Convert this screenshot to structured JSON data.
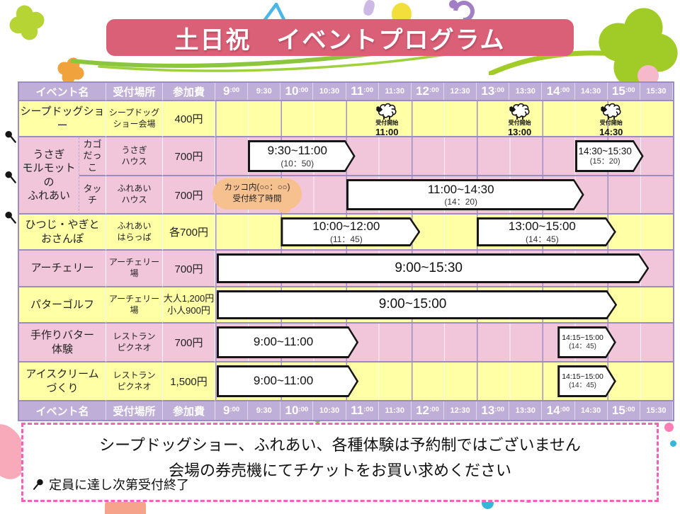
{
  "title": "土日祝　イベントプログラム",
  "colors": {
    "title_bar": "#d96077",
    "header_purple": "#bfaed8",
    "row_yellow": "#ffffa6",
    "row_pink": "#f2c6da",
    "grid_line": "#9c8cc2",
    "note_border": "#f361bd",
    "bubble_orange": "#f6c18f",
    "clover_green": "#a1cb27"
  },
  "icons": {
    "sheep-icon": "white cloud sheep with black face (svg shape)",
    "pin-icon": "black pushpin marker = capacity-limited event (svg shape)",
    "clover-icon": "four-petal clover decoration (svg shape)"
  },
  "table": {
    "col_headers": [
      "イベント名",
      "受付場所",
      "参加費"
    ],
    "time_headers": [
      {
        "label": "9:00",
        "hour": "9",
        "minutes": ":00"
      },
      {
        "label": "9:30"
      },
      {
        "label": "10:00",
        "hour": "10",
        "minutes": ":00"
      },
      {
        "label": "10:30"
      },
      {
        "label": "11:00",
        "hour": "11",
        "minutes": ":00"
      },
      {
        "label": "11:30"
      },
      {
        "label": "12:00",
        "hour": "12",
        "minutes": ":00"
      },
      {
        "label": "12:30"
      },
      {
        "label": "13:00",
        "hour": "13",
        "minutes": ":00"
      },
      {
        "label": "13:30"
      },
      {
        "label": "14:00",
        "hour": "14",
        "minutes": ":00"
      },
      {
        "label": "14:30"
      },
      {
        "label": "15:00",
        "hour": "15",
        "minutes": ":00"
      },
      {
        "label": "15:30"
      }
    ],
    "rows": [
      {
        "event": "シープドッグショー",
        "location": "シープドッグ\nショー会場",
        "fee": "400円",
        "markers": [
          {
            "label": "受付開始",
            "time": "11:00"
          },
          {
            "label": "受付開始",
            "time": "13:00"
          },
          {
            "label": "受付開始",
            "time": "14:30"
          }
        ]
      },
      {
        "group": "うさぎ\nモルモットの\nふれあい",
        "sub": "カゴ\nだっこ",
        "location": "うさぎ\nハウス",
        "fee": "700円",
        "bars": [
          {
            "time": "9:30~11:00",
            "end": "(10：50)"
          },
          {
            "time": "14:30~15:30",
            "end": "(15：20)"
          }
        ]
      },
      {
        "sub": "タッチ",
        "location": "ふれあい\nハウス",
        "fee": "700円",
        "bars": [
          {
            "time": "11:00~14:30",
            "end": "(14：20)"
          }
        ]
      },
      {
        "event": "ひつじ・やぎと\nおさんぽ",
        "location": "ふれあい\nはらっぱ",
        "fee": "各700円",
        "bars": [
          {
            "time": "10:00~12:00",
            "end": "(11：45)"
          },
          {
            "time": "13:00~15:00",
            "end": "(14：45)"
          }
        ]
      },
      {
        "event": "アーチェリー",
        "location": "アーチェリー場",
        "fee": "700円",
        "bars": [
          {
            "time": "9:00~15:30"
          }
        ]
      },
      {
        "event": "パターゴルフ",
        "location": "アーチェリー場",
        "fee": "大人1,200円\n小人900円",
        "bars": [
          {
            "time": "9:00~15:00"
          }
        ]
      },
      {
        "event": "手作りバター\n体験",
        "location": "レストラン\nピクネオ",
        "fee": "700円",
        "bars": [
          {
            "time": "9:00~11:00"
          },
          {
            "time": "14:15~15:00",
            "end": "(14：45)"
          }
        ]
      },
      {
        "event": "アイスクリーム\nづくり",
        "location": "レストラン\nピクネオ",
        "fee": "1,500円",
        "bars": [
          {
            "time": "9:00~11:00"
          },
          {
            "time": "14:15~15:00",
            "end": "(14：45)"
          }
        ]
      }
    ]
  },
  "legend_bubble": {
    "text": "カッコ内(○○：○○)\n受付終了時間"
  },
  "note": {
    "line1": "シープドッグショー、ふれあい、各種体験は予約制ではございません",
    "line2": "会場の券売機にてチケットをお買い求めください",
    "capacity": "定員に達し次第受付終了"
  }
}
